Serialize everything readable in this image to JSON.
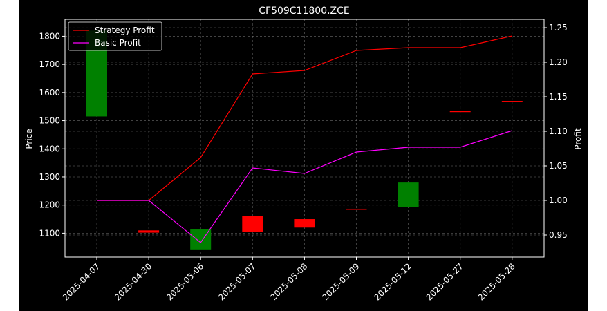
{
  "chart_data": {
    "type": "candlestick+line",
    "title": "CF509C11800.ZCE",
    "xlabel": "",
    "ylabel_left": "Price",
    "ylabel_right": "Profit",
    "categories": [
      "2025-04-07",
      "2025-04-30",
      "2025-05-06",
      "2025-05-07",
      "2025-05-08",
      "2025-05-09",
      "2025-05-12",
      "2025-05-27",
      "2025-05-28"
    ],
    "y_left": {
      "range": [
        1015,
        1860
      ],
      "ticks": [
        1100,
        1200,
        1300,
        1400,
        1500,
        1600,
        1700,
        1800
      ]
    },
    "y_right": {
      "range": [
        0.918,
        1.262
      ],
      "ticks": [
        "0.95",
        "1.00",
        "1.05",
        "1.10",
        "1.15",
        "1.20",
        "1.25"
      ]
    },
    "grid": true,
    "legend_position": "top-left",
    "background": "#000000",
    "colors": {
      "up": "#008000",
      "down": "#ff0000",
      "strategy": "#ff0000",
      "basic": "#ff00ff",
      "axes": "#ffffff",
      "grid": "#808080"
    },
    "candles": [
      {
        "open": 1515,
        "close": 1820
      },
      {
        "open": 1110,
        "close": 1102
      },
      {
        "open": 1040,
        "close": 1115
      },
      {
        "open": 1160,
        "close": 1105
      },
      {
        "open": 1150,
        "close": 1120
      },
      {
        "open": 1187,
        "close": 1185
      },
      {
        "open": 1192,
        "close": 1280
      },
      {
        "open": 1534,
        "close": 1532
      },
      {
        "open": 1570,
        "close": 1568
      }
    ],
    "series": [
      {
        "name": "Strategy Profit",
        "color": "#ff0000",
        "values": [
          1.0,
          1.0,
          1.062,
          1.183,
          1.188,
          1.217,
          1.221,
          1.221,
          1.238
        ]
      },
      {
        "name": "Basic Profit",
        "color": "#ff00ff",
        "values": [
          1.0,
          1.0,
          0.939,
          1.047,
          1.039,
          1.07,
          1.077,
          1.077,
          1.101
        ]
      }
    ]
  }
}
